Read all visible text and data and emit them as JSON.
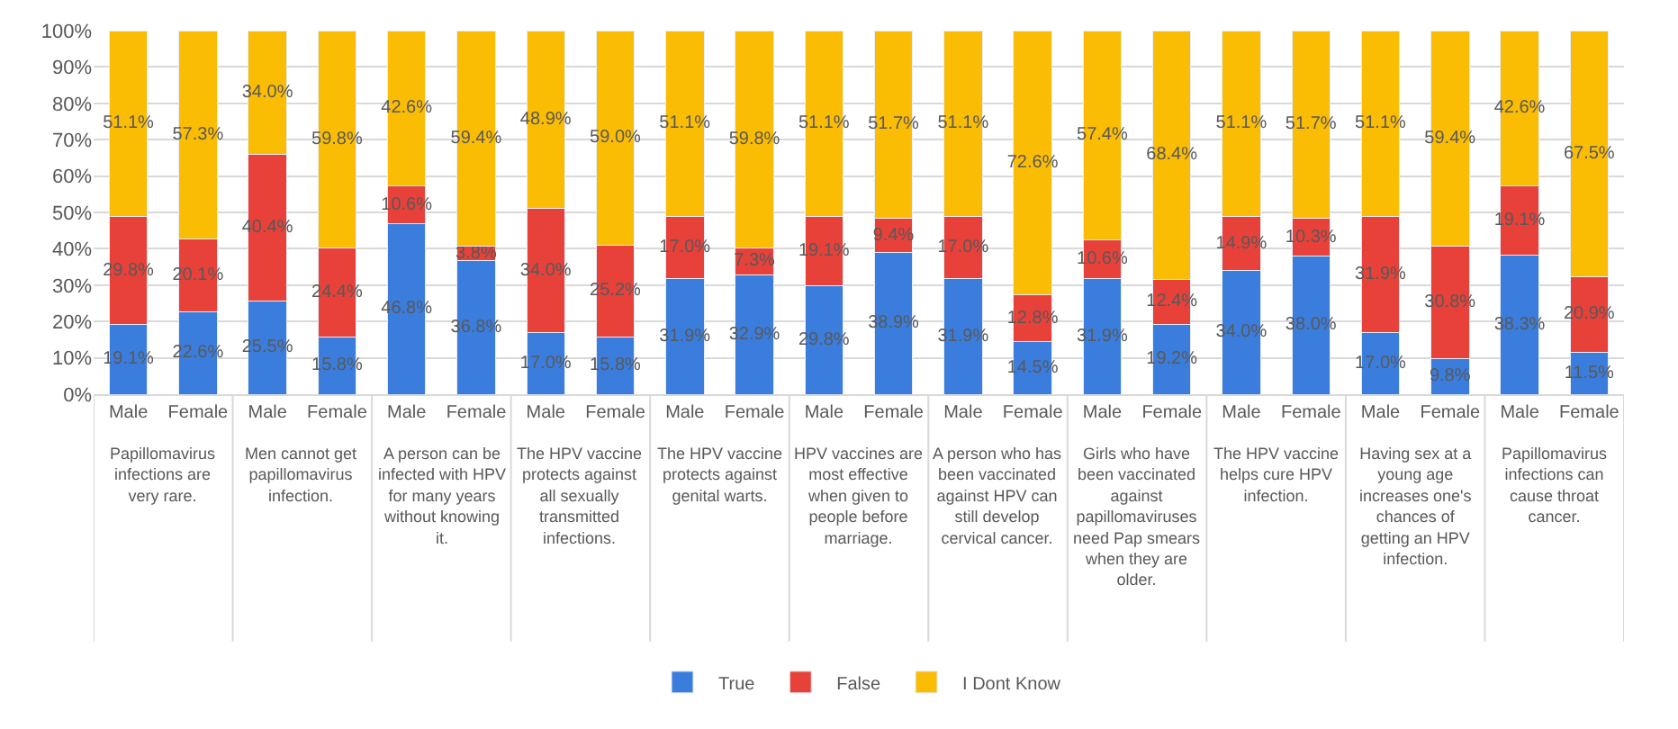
{
  "chart_data": {
    "type": "bar",
    "stacked": true,
    "categories": [
      "Male",
      "Female",
      "Male",
      "Female",
      "Male",
      "Female",
      "Male",
      "Female",
      "Male",
      "Female",
      "Male",
      "Female",
      "Male",
      "Female",
      "Male",
      "Female",
      "Male",
      "Female",
      "Male",
      "Female",
      "Male",
      "Female"
    ],
    "series": [
      {
        "name": "True",
        "color": "#3b7ddd",
        "values": [
          19.1,
          22.6,
          25.5,
          15.8,
          46.8,
          36.8,
          17.0,
          15.8,
          31.9,
          32.9,
          29.8,
          38.9,
          31.9,
          14.5,
          31.9,
          19.2,
          34.0,
          38.0,
          17.0,
          9.8,
          38.3,
          11.5
        ],
        "value_labels": [
          "19.1%",
          "22.6%",
          "25.5%",
          "15.8%",
          "46.8%",
          "36.8%",
          "17.0%",
          "15.8%",
          "31.9%",
          "32.9%",
          "29.8%",
          "38.9%",
          "31.9%",
          "14.5%",
          "31.9%",
          "19.2%",
          "34.0%",
          "38.0%",
          "17.0%",
          "9.8%",
          "38.3%",
          "11.5%"
        ]
      },
      {
        "name": "False",
        "color": "#e8413a",
        "values": [
          29.8,
          20.1,
          40.4,
          24.4,
          10.6,
          3.8,
          34.0,
          25.2,
          17.0,
          7.3,
          19.1,
          9.4,
          17.0,
          12.8,
          10.6,
          12.4,
          14.9,
          10.3,
          31.9,
          30.8,
          19.1,
          20.9
        ],
        "value_labels": [
          "29.8%",
          "20.1%",
          "40.4%",
          "24.4%",
          "10.6%",
          "3.8%",
          "34.0%",
          "25.2%",
          "17.0%",
          "7.3%",
          "19.1%",
          "9.4%",
          "17.0%",
          "12.8%",
          "10.6%",
          "12.4%",
          "14.9%",
          "10.3%",
          "31.9%",
          "30.8%",
          "19.1%",
          "20.9%"
        ]
      },
      {
        "name": "I Dont Know",
        "color": "#fbbc04",
        "values": [
          51.1,
          57.3,
          34.0,
          59.8,
          42.6,
          59.4,
          48.9,
          59.0,
          51.1,
          59.8,
          51.1,
          51.7,
          51.1,
          72.6,
          57.4,
          68.4,
          51.1,
          51.7,
          51.1,
          59.4,
          42.6,
          67.5
        ],
        "value_labels": [
          "51.1%",
          "57.3%",
          "34.0%",
          "59.8%",
          "42.6%",
          "59.4%",
          "48.9%",
          "59.0%",
          "51.1%",
          "59.8%",
          "51.1%",
          "51.7%",
          "51.1%",
          "72.6%",
          "57.4%",
          "68.4%",
          "51.1%",
          "51.7%",
          "51.1%",
          "59.4%",
          "42.6%",
          "67.5%"
        ]
      }
    ],
    "annotations": [
      "Papillomavirus infections are very rare.",
      "Men cannot get papillomavirus infection.",
      "A person can be infected with HPV for many years without knowing it.",
      "The HPV vaccine protects against all sexually transmitted infections.",
      "The HPV vaccine protects against genital warts.",
      "HPV vaccines are most effective when given to people before marriage.",
      "A person who has been vaccinated against HPV can still develop cervical cancer.",
      "Girls who have been vaccinated against papillomaviruses need Pap smears when they are older.",
      "The HPV vaccine helps cure HPV infection.",
      "Having sex at a young age increases one's chances of getting an HPV infection.",
      "Papillomavirus infections can cause throat cancer."
    ],
    "ylim": [
      0,
      100
    ],
    "yticks": [
      {
        "value": 0,
        "label": "0%"
      },
      {
        "value": 10,
        "label": "10%"
      },
      {
        "value": 20,
        "label": "20%"
      },
      {
        "value": 30,
        "label": "30%"
      },
      {
        "value": 40,
        "label": "40%"
      },
      {
        "value": 50,
        "label": "50%"
      },
      {
        "value": 60,
        "label": "60%"
      },
      {
        "value": 70,
        "label": "70%"
      },
      {
        "value": 80,
        "label": "80%"
      },
      {
        "value": 90,
        "label": "90%"
      },
      {
        "value": 100,
        "label": "100%"
      }
    ],
    "grid": "y",
    "legend": "bottom"
  }
}
